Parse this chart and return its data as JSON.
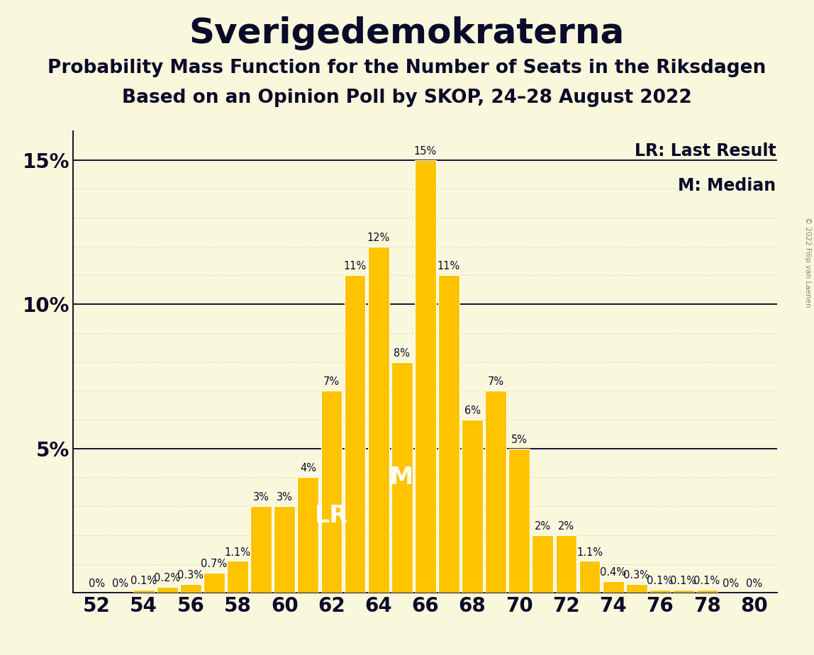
{
  "title": "Sverigedemokraterna",
  "subtitle1": "Probability Mass Function for the Number of Seats in the Riksdagen",
  "subtitle2": "Based on an Opinion Poll by SKOP, 24–28 August 2022",
  "copyright": "© 2022 Filip van Laenen",
  "seats": [
    52,
    53,
    54,
    55,
    56,
    57,
    58,
    59,
    60,
    61,
    62,
    63,
    64,
    65,
    66,
    67,
    68,
    69,
    70,
    71,
    72,
    73,
    74,
    75,
    76,
    77,
    78,
    79,
    80
  ],
  "probabilities": [
    0.0,
    0.0,
    0.1,
    0.2,
    0.3,
    0.7,
    1.1,
    3.0,
    3.0,
    4.0,
    7.0,
    11.0,
    12.0,
    8.0,
    15.0,
    11.0,
    6.0,
    7.0,
    5.0,
    2.0,
    2.0,
    1.1,
    0.4,
    0.3,
    0.1,
    0.1,
    0.1,
    0.0,
    0.0
  ],
  "bar_color": "#FFC300",
  "bar_edge_color": "#FFFFFF",
  "background_color": "#FAF8DC",
  "title_color": "#0A0A2A",
  "lr_seat": 62,
  "median_seat": 65,
  "lr_label": "LR",
  "median_label": "M",
  "legend_lr": "LR: Last Result",
  "legend_m": "M: Median",
  "ylim_max": 16,
  "xlabel_fontsize": 20,
  "ylabel_fontsize": 20,
  "title_fontsize": 36,
  "subtitle1_fontsize": 19,
  "subtitle2_fontsize": 19,
  "bar_label_fontsize": 10.5,
  "annotation_fontsize": 24,
  "dotted_grid_color": "#AAAAAA",
  "solid_line_color": "#111133",
  "label_text_color": "#FFFFFF",
  "legend_fontsize": 17
}
